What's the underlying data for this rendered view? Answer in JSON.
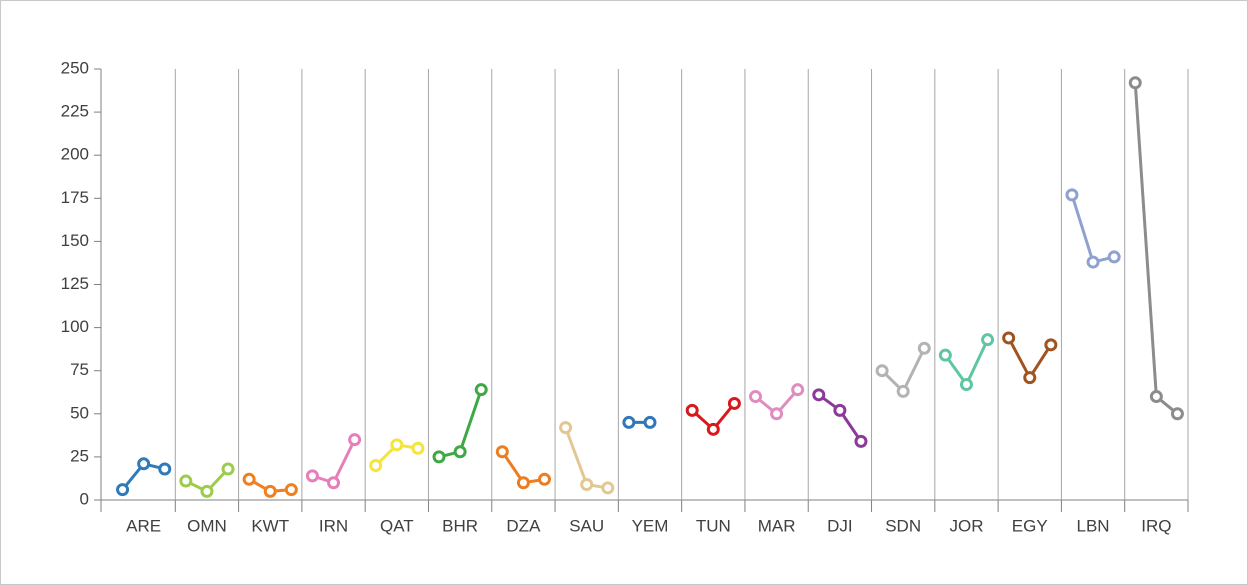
{
  "chart_data": {
    "type": "grouped-line",
    "categories": [
      "ARE",
      "OMN",
      "KWT",
      "IRN",
      "QAT",
      "BHR",
      "DZA",
      "SAU",
      "YEM",
      "TUN",
      "MAR",
      "DJI",
      "SDN",
      "JOR",
      "EGY",
      "LBN",
      "IRQ"
    ],
    "values": [
      [
        6,
        21,
        18
      ],
      [
        11,
        5,
        18
      ],
      [
        12,
        5,
        6
      ],
      [
        14,
        10,
        35
      ],
      [
        20,
        32,
        30
      ],
      [
        25,
        28,
        64
      ],
      [
        28,
        10,
        12
      ],
      [
        42,
        9,
        7
      ],
      [
        45,
        45,
        null
      ],
      [
        52,
        41,
        56
      ],
      [
        60,
        50,
        64
      ],
      [
        61,
        52,
        34
      ],
      [
        75,
        63,
        88
      ],
      [
        84,
        67,
        93
      ],
      [
        94,
        71,
        90
      ],
      [
        177,
        138,
        141
      ],
      [
        242,
        60,
        50
      ]
    ],
    "colors": [
      "#2f7ab9",
      "#9ccc4b",
      "#f07f1f",
      "#e67fb9",
      "#f5e43a",
      "#3da945",
      "#ed7d22",
      "#e3c793",
      "#2e78b7",
      "#d7191c",
      "#e08cc0",
      "#8b3a9a",
      "#b3b3b3",
      "#5ec6a0",
      "#a0521f",
      "#8ea1cf",
      "#8c8c8c"
    ],
    "ylim": [
      0,
      250
    ],
    "yticks": [
      0,
      25,
      50,
      75,
      100,
      125,
      150,
      175,
      200,
      225,
      250
    ],
    "grid": true
  }
}
